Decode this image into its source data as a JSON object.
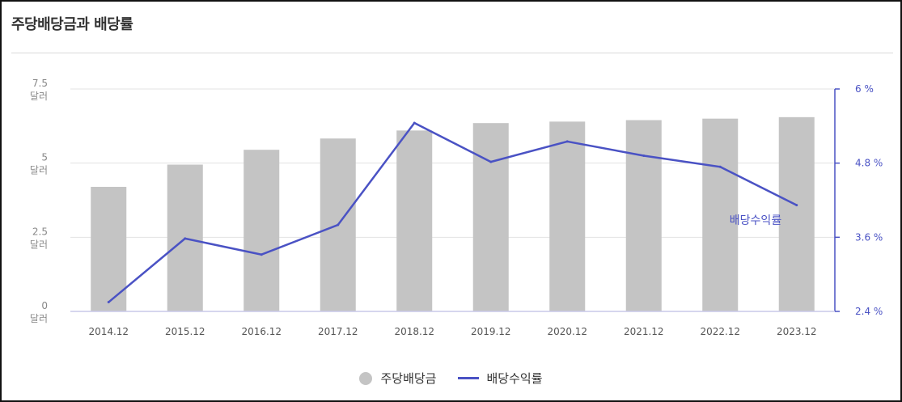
{
  "title": "주당배당금과 배당률",
  "legend": {
    "bars_label": "주당배당금",
    "line_label": "배당수익률"
  },
  "line_annotation": "배당수익률",
  "chart_data": {
    "type": "bar",
    "categories": [
      "2014.12",
      "2015.12",
      "2016.12",
      "2017.12",
      "2018.12",
      "2019.12",
      "2020.12",
      "2021.12",
      "2022.12",
      "2023.12"
    ],
    "series": [
      {
        "name": "주당배당금",
        "type": "bar",
        "axis": "left",
        "color": "#c4c4c4",
        "values": [
          4.2,
          4.95,
          5.45,
          5.83,
          6.1,
          6.35,
          6.4,
          6.45,
          6.5,
          6.55
        ]
      },
      {
        "name": "배당수익률",
        "type": "line",
        "axis": "right",
        "color": "#4a52c4",
        "values": [
          2.55,
          3.58,
          3.32,
          3.8,
          5.45,
          4.82,
          5.15,
          4.92,
          4.74,
          4.12
        ]
      }
    ],
    "y_left": {
      "ylim": [
        0,
        7.5
      ],
      "ticks": [
        {
          "value": 0,
          "label": "0",
          "unit": "달러"
        },
        {
          "value": 2.5,
          "label": "2.5",
          "unit": "달러"
        },
        {
          "value": 5,
          "label": "5",
          "unit": "달러"
        },
        {
          "value": 7.5,
          "label": "7.5",
          "unit": "달러"
        }
      ]
    },
    "y_right": {
      "ylim": [
        2.4,
        6
      ],
      "ticks": [
        {
          "value": 2.4,
          "label": "2.4 %"
        },
        {
          "value": 3.6,
          "label": "3.6 %"
        },
        {
          "value": 4.8,
          "label": "4.8 %"
        },
        {
          "value": 6,
          "label": "6 %"
        }
      ]
    },
    "grid": true,
    "legend_position": "bottom-center"
  }
}
